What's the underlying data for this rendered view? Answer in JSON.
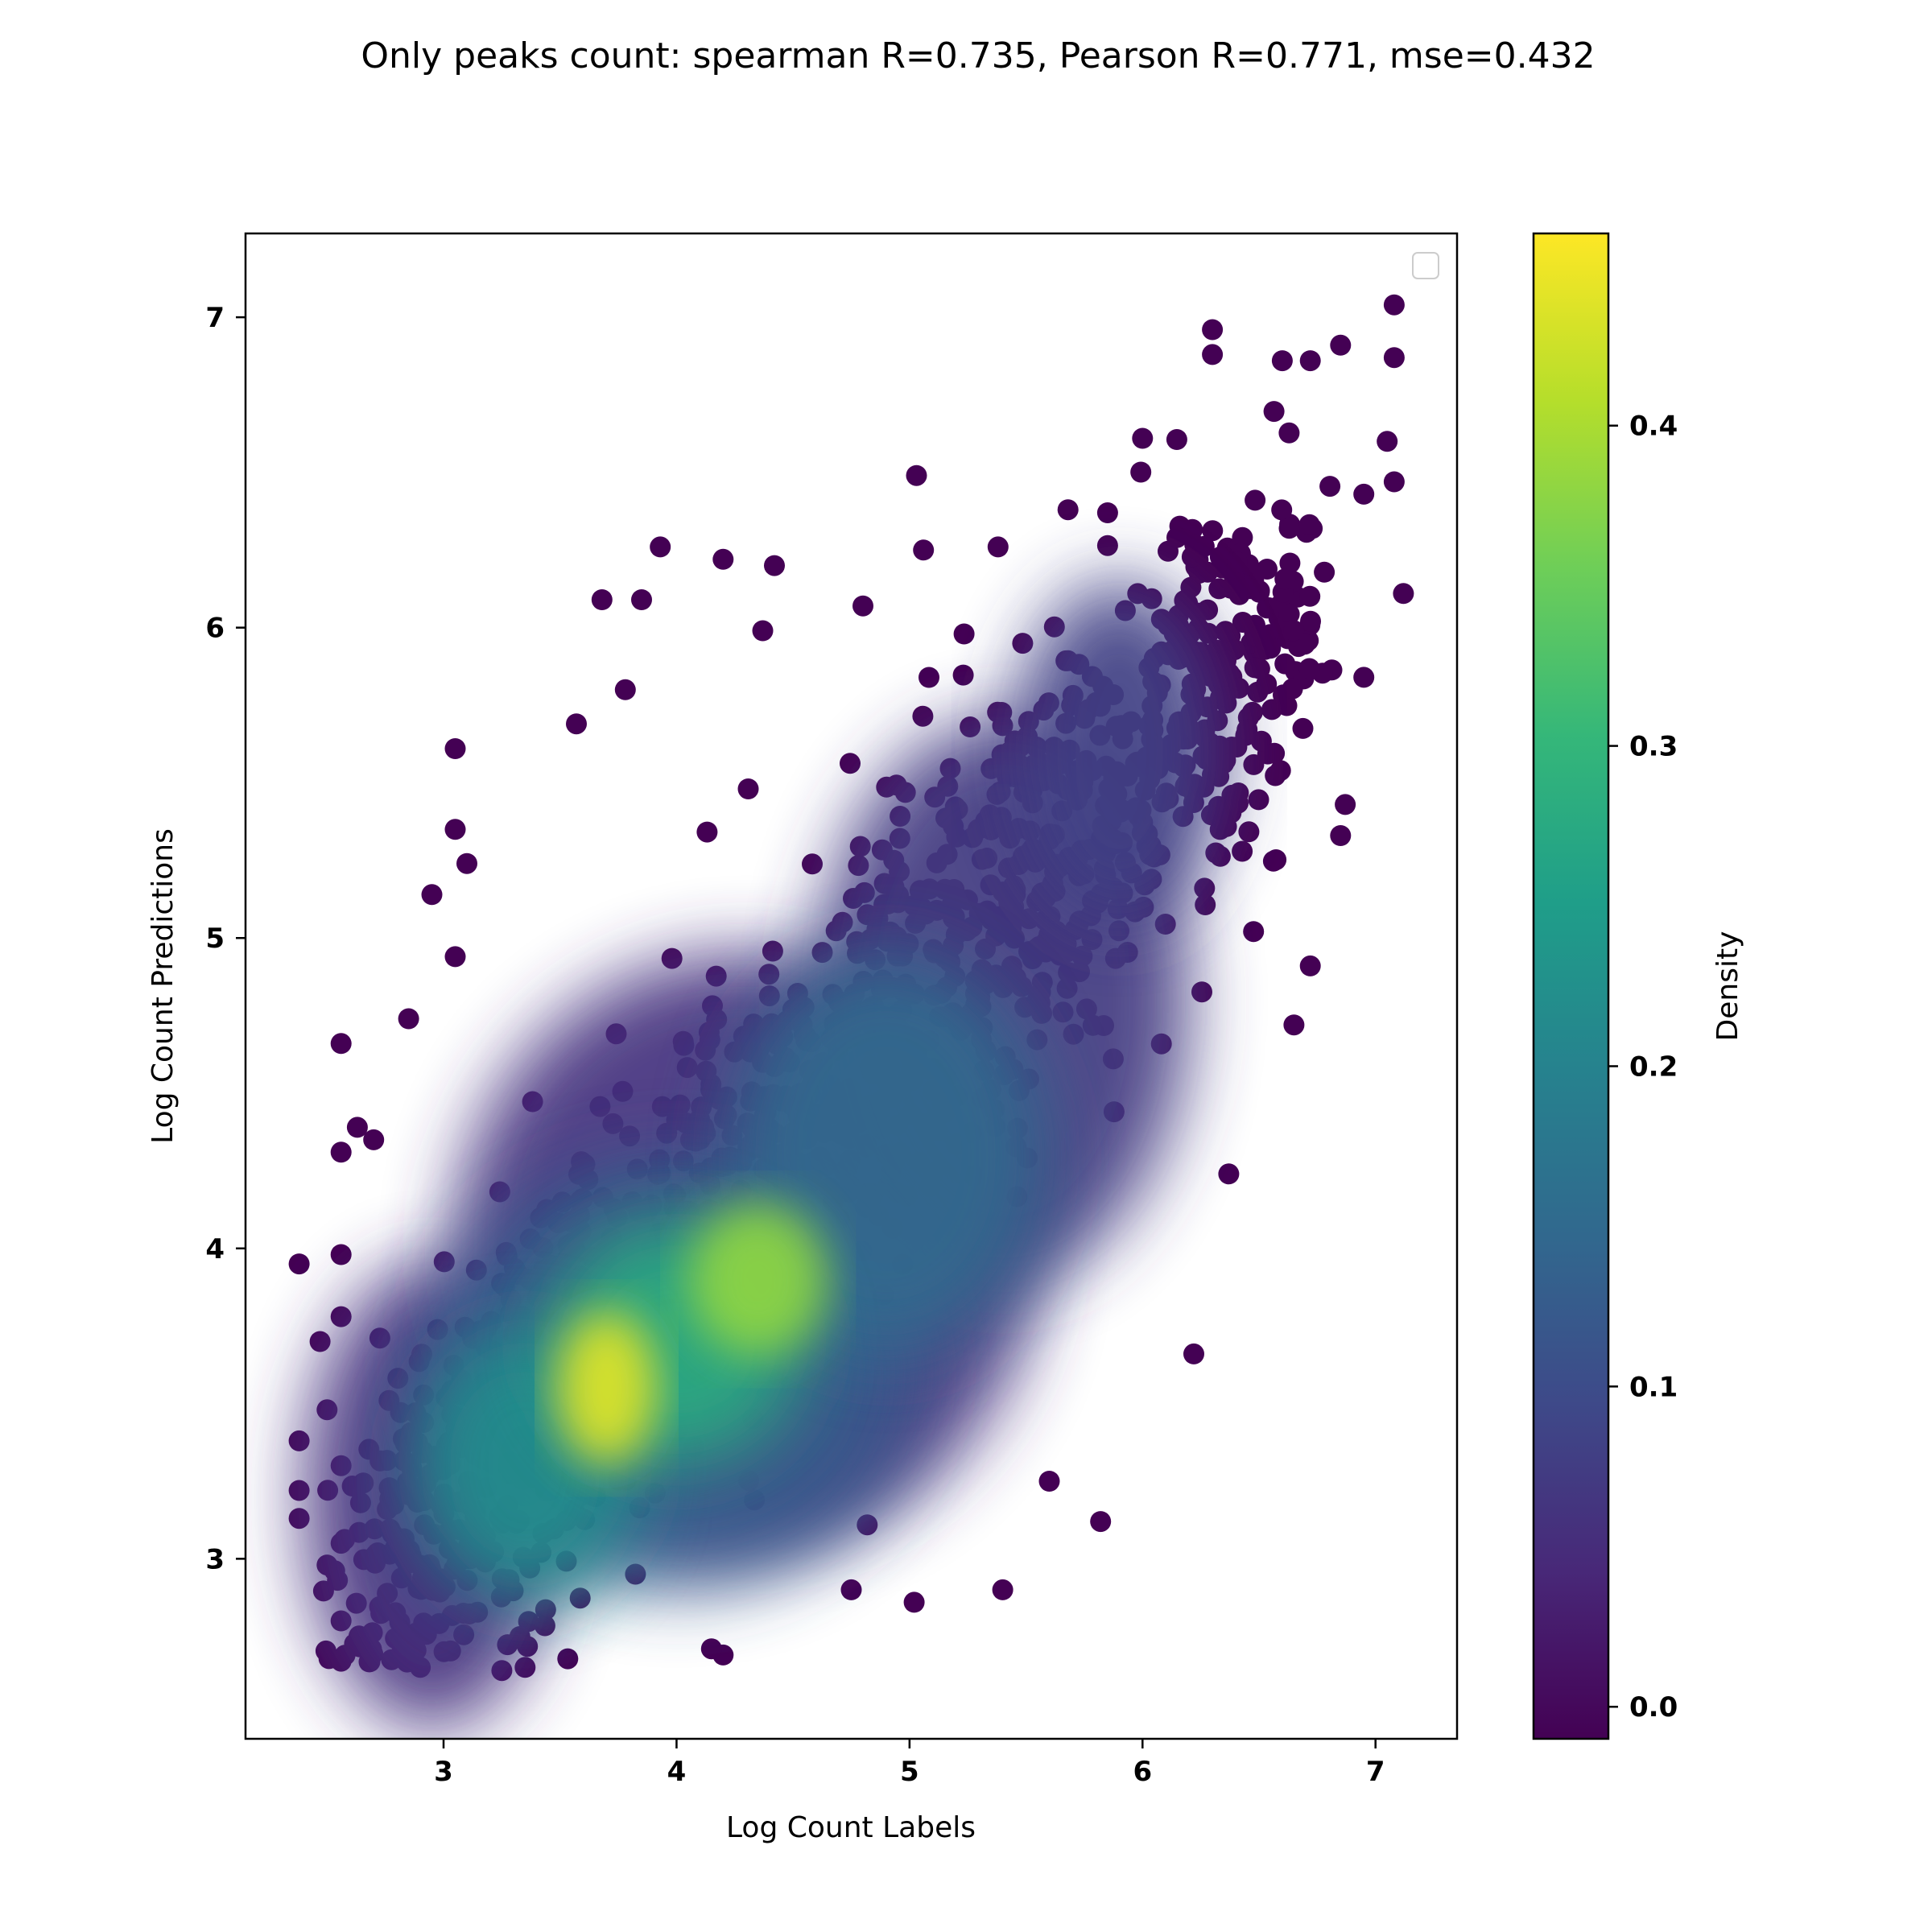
{
  "chart_data": {
    "type": "scatter",
    "title": "Only peaks count: spearman R=0.735, Pearson R=0.771, mse=0.432",
    "xlabel": "Log Count Labels",
    "ylabel": "Log Count Predictions",
    "xlim": [
      2.15,
      7.35
    ],
    "ylim": [
      2.42,
      7.27
    ],
    "x_ticks": [
      "3",
      "4",
      "5",
      "6",
      "7"
    ],
    "y_ticks": [
      "3",
      "4",
      "5",
      "6",
      "7"
    ],
    "grid": false,
    "legend": {
      "placement": "top-right",
      "entries": []
    },
    "colorbar": {
      "label": "Density",
      "range": [
        -0.01,
        0.46
      ],
      "ticks": [
        "0.0",
        "0.1",
        "0.2",
        "0.3",
        "0.4"
      ],
      "colormap": "viridis",
      "colors": [
        "#440154",
        "#482878",
        "#3e4989",
        "#31688e",
        "#26828e",
        "#1f9e89",
        "#35b779",
        "#6ece58",
        "#b5de2b",
        "#fde725"
      ]
    },
    "density_cores": [
      {
        "x": 3.7,
        "y": 3.55,
        "density": 0.46
      },
      {
        "x": 4.35,
        "y": 3.9,
        "density": 0.4
      },
      {
        "x": 3.2,
        "y": 3.4,
        "density": 0.3
      }
    ],
    "sample_points": [
      [
        2.38,
        3.95
      ],
      [
        2.38,
        3.38
      ],
      [
        2.38,
        3.22
      ],
      [
        2.38,
        3.13
      ],
      [
        2.47,
        3.7
      ],
      [
        2.5,
        3.48
      ],
      [
        2.5,
        2.98
      ],
      [
        2.56,
        4.66
      ],
      [
        2.56,
        4.31
      ],
      [
        2.56,
        3.98
      ],
      [
        2.56,
        3.78
      ],
      [
        2.56,
        3.3
      ],
      [
        2.56,
        3.05
      ],
      [
        2.56,
        2.8
      ],
      [
        2.56,
        2.67
      ],
      [
        2.63,
        4.39
      ],
      [
        2.7,
        4.35
      ],
      [
        2.85,
        4.74
      ],
      [
        2.9,
        2.65
      ],
      [
        2.95,
        5.14
      ],
      [
        3.05,
        5.61
      ],
      [
        3.05,
        5.35
      ],
      [
        3.1,
        5.24
      ],
      [
        3.05,
        4.94
      ],
      [
        3.25,
        2.64
      ],
      [
        3.35,
        2.65
      ],
      [
        3.57,
        5.69
      ],
      [
        3.68,
        6.09
      ],
      [
        3.78,
        5.8
      ],
      [
        3.85,
        6.09
      ],
      [
        3.93,
        6.26
      ],
      [
        4.2,
        6.22
      ],
      [
        4.2,
        2.69
      ],
      [
        4.15,
        2.71
      ],
      [
        4.42,
        6.2
      ],
      [
        4.37,
        5.99
      ],
      [
        4.8,
        6.07
      ],
      [
        4.75,
        2.9
      ],
      [
        5.03,
        6.49
      ],
      [
        5.06,
        6.25
      ],
      [
        5.02,
        2.86
      ],
      [
        5.38,
        6.26
      ],
      [
        5.4,
        2.9
      ],
      [
        5.6,
        3.25
      ],
      [
        5.68,
        6.38
      ],
      [
        5.82,
        3.12
      ],
      [
        5.85,
        6.37
      ],
      [
        6.0,
        6.61
      ],
      [
        6.22,
        3.66
      ],
      [
        6.3,
        6.96
      ],
      [
        6.3,
        6.88
      ],
      [
        6.37,
        4.24
      ],
      [
        6.6,
        6.86
      ],
      [
        6.72,
        6.86
      ],
      [
        6.85,
        6.91
      ],
      [
        6.87,
        5.43
      ],
      [
        6.85,
        5.33
      ],
      [
        6.72,
        4.91
      ],
      [
        6.65,
        4.72
      ],
      [
        7.08,
        7.04
      ],
      [
        7.08,
        6.87
      ],
      [
        7.12,
        6.11
      ],
      [
        7.08,
        6.47
      ],
      [
        6.95,
        6.43
      ],
      [
        6.95,
        5.84
      ],
      [
        7.05,
        6.6
      ]
    ]
  }
}
